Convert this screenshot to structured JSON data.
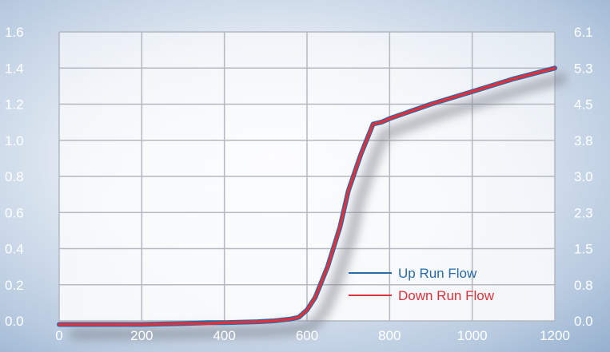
{
  "chart_data": {
    "type": "line",
    "title": "",
    "xlabel": "",
    "ylabel": "",
    "xlim": [
      0,
      1200
    ],
    "ylim": [
      0,
      1.6
    ],
    "y2lim": [
      0,
      6.1
    ],
    "grid": true,
    "legend_position": "bottom-right",
    "x_ticks": [
      "0",
      "200",
      "400",
      "600",
      "800",
      "1000",
      "1200"
    ],
    "y_ticks": [
      "0.0",
      "0.2",
      "0.4",
      "0.6",
      "0.8",
      "1.0",
      "1.2",
      "1.4",
      "1.6"
    ],
    "y2_ticks": [
      "0.0",
      "0.8",
      "1.5",
      "2.3",
      "3.0",
      "3.8",
      "4.5",
      "5.3",
      "6.1"
    ],
    "series": [
      {
        "name": "Up Run Flow",
        "color": "#2a6aa8",
        "x": [
          0,
          100,
          200,
          300,
          360,
          400,
          480,
          520,
          560,
          580,
          600,
          620,
          650,
          680,
          700,
          730,
          760,
          780,
          800,
          900,
          1000,
          1100,
          1200
        ],
        "y": [
          -0.02,
          -0.02,
          -0.02,
          -0.015,
          -0.01,
          -0.01,
          -0.005,
          0.0,
          0.01,
          0.02,
          0.06,
          0.13,
          0.3,
          0.52,
          0.72,
          0.92,
          1.09,
          1.1,
          1.12,
          1.2,
          1.27,
          1.34,
          1.4
        ]
      },
      {
        "name": "Down Run Flow",
        "color": "#e0303a",
        "x": [
          0,
          100,
          200,
          300,
          360,
          400,
          480,
          520,
          560,
          580,
          600,
          620,
          650,
          680,
          700,
          730,
          760,
          780,
          800,
          900,
          1000,
          1100,
          1200
        ],
        "y": [
          -0.02,
          -0.02,
          -0.02,
          -0.015,
          -0.015,
          -0.01,
          -0.005,
          0.0,
          0.01,
          0.02,
          0.06,
          0.13,
          0.3,
          0.52,
          0.72,
          0.92,
          1.09,
          1.1,
          1.12,
          1.2,
          1.27,
          1.34,
          1.4
        ]
      }
    ]
  },
  "colors": {
    "grid": "#b4b8c0",
    "plot_background": "#ffffff",
    "tick_label": "#ffffff",
    "legend_text_up": "#2a6aa8",
    "legend_text_down": "#e0303a"
  }
}
